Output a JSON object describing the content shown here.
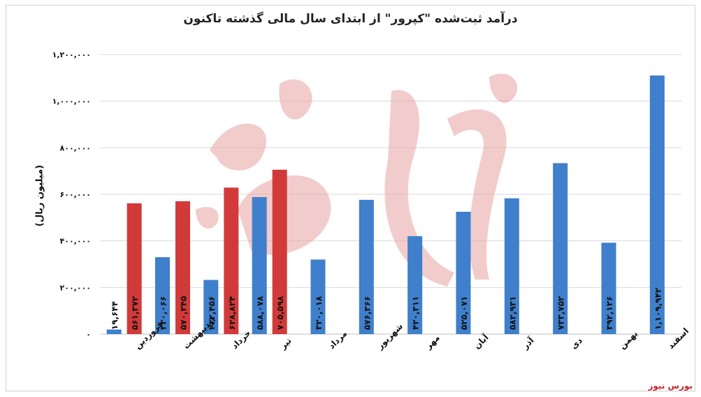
{
  "chart_data": {
    "type": "bar",
    "title": "درآمد ثبت‌شده \"کپرور\" از ابتدای سال مالی گذشته تاکنون",
    "ylabel": "(میلیون ریال)",
    "ylim": [
      0,
      1200000
    ],
    "yticks": [
      "۰",
      "۲۰۰,۰۰۰",
      "۴۰۰,۰۰۰",
      "۶۰۰,۰۰۰",
      "۸۰۰,۰۰۰",
      "۱,۰۰۰,۰۰۰",
      "۱,۲۰۰,۰۰۰"
    ],
    "yticks_values": [
      0,
      200000,
      400000,
      600000,
      800000,
      1000000,
      1200000
    ],
    "categories": [
      "فروردین",
      "اردیبهشت",
      "خرداد",
      "تیر",
      "مرداد",
      "شهریور",
      "مهر",
      "آبان",
      "آذر",
      "دی",
      "بهمن",
      "اسفند"
    ],
    "series": [
      {
        "color": "#3f7fcb",
        "values": [
          19644,
          330066,
          232456,
          588078,
          320018,
          576366,
          420311,
          525071,
          582931,
          733752,
          392126,
          1109942
        ],
        "labels": [
          "۱۹,۶۴۴",
          "۳۳۰,۰۶۶",
          "۲۳۲,۴۵۶",
          "۵۸۸,۰۷۸",
          "۳۲۰,۰۱۸",
          "۵۷۶,۳۶۶",
          "۴۲۰,۳۱۱",
          "۵۲۵,۰۷۱",
          "۵۸۲,۹۳۱",
          "۷۳۳,۷۵۲",
          "۳۹۲,۱۲۶",
          "۱,۱۰۹,۹۴۲"
        ]
      },
      {
        "color": "#d23a3a",
        "values": [
          561372,
          570345,
          628824,
          705598,
          null,
          null,
          null,
          null,
          null,
          null,
          null,
          null
        ],
        "labels": [
          "۵۶۱,۳۷۲",
          "۵۷۰,۳۴۵",
          "۶۲۸,۸۲۴",
          "۷۰۵,۵۹۸",
          "",
          "",
          "",
          "",
          "",
          "",
          "",
          ""
        ]
      }
    ],
    "grid": true,
    "legend": "none"
  },
  "source_label": "بورس نیوز",
  "watermark_text": "بورس نیوز"
}
